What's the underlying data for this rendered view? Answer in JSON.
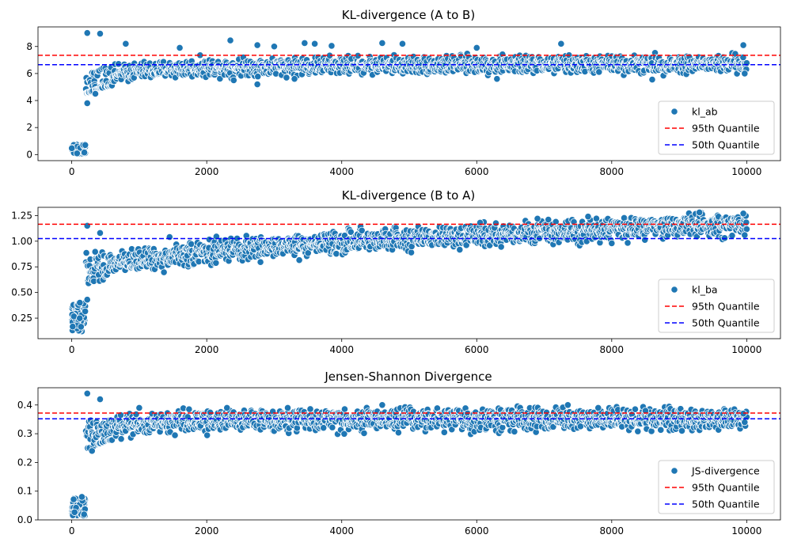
{
  "chart_data": [
    {
      "type": "scatter",
      "title": "KL-divergence (A to B)",
      "xlabel": "",
      "ylabel": "",
      "xlim": [
        -500,
        10500
      ],
      "ylim": [
        -0.45,
        9.45
      ],
      "xticks": [
        0,
        2000,
        4000,
        6000,
        8000,
        10000
      ],
      "yticks": [
        0,
        2,
        4,
        6,
        8
      ],
      "series_name": "kl_ab",
      "trend": {
        "warmup_end": 200,
        "warmup_range": [
          0.05,
          0.75
        ],
        "jump_x": 210,
        "points": [
          [
            210,
            5.3
          ],
          [
            500,
            5.8
          ],
          [
            1000,
            6.2
          ],
          [
            2000,
            6.45
          ],
          [
            4000,
            6.6
          ],
          [
            6000,
            6.65
          ],
          [
            10000,
            6.7
          ]
        ],
        "spread": 0.85,
        "pct_range_start": [
          0.55,
          1.05
        ]
      },
      "outliers": [
        [
          230,
          9.0
        ],
        [
          420,
          8.95
        ],
        [
          230,
          3.8
        ],
        [
          350,
          4.5
        ],
        [
          800,
          8.2
        ],
        [
          1600,
          7.9
        ],
        [
          2350,
          8.45
        ],
        [
          2400,
          5.5
        ],
        [
          2750,
          5.2
        ],
        [
          2750,
          8.1
        ],
        [
          3000,
          8.0
        ],
        [
          3300,
          5.6
        ],
        [
          3450,
          8.25
        ],
        [
          3600,
          8.2
        ],
        [
          3850,
          8.05
        ],
        [
          4600,
          8.25
        ],
        [
          4900,
          8.2
        ],
        [
          6000,
          7.9
        ],
        [
          7250,
          8.2
        ],
        [
          9950,
          8.1
        ],
        [
          9970,
          6.0
        ],
        [
          6300,
          5.6
        ],
        [
          8600,
          5.55
        ]
      ],
      "hlines": [
        {
          "label": "95th Quantile",
          "value": 7.35,
          "color": "#ff0000"
        },
        {
          "label": "50th Quantile",
          "value": 6.65,
          "color": "#0000ff"
        }
      ],
      "legend_position": "lower-right"
    },
    {
      "type": "scatter",
      "title": "KL-divergence (B to A)",
      "xlabel": "",
      "ylabel": "",
      "xlim": [
        -500,
        10500
      ],
      "ylim": [
        0.05,
        1.33
      ],
      "xticks": [
        0,
        2000,
        4000,
        6000,
        8000,
        10000
      ],
      "yticks": [
        0.25,
        0.5,
        0.75,
        1.0,
        1.25
      ],
      "series_name": "kl_ba",
      "trend": {
        "warmup_end": 200,
        "warmup_range": [
          0.12,
          0.4
        ],
        "jump_x": 210,
        "points": [
          [
            210,
            0.68
          ],
          [
            500,
            0.76
          ],
          [
            1000,
            0.82
          ],
          [
            2000,
            0.89
          ],
          [
            3000,
            0.95
          ],
          [
            4000,
            0.99
          ],
          [
            5000,
            1.03
          ],
          [
            6000,
            1.06
          ],
          [
            7000,
            1.09
          ],
          [
            8000,
            1.12
          ],
          [
            9000,
            1.15
          ],
          [
            10000,
            1.17
          ]
        ],
        "spread": 0.14,
        "pct_range_start": [
          0.6,
          0.9
        ]
      },
      "outliers": [
        [
          230,
          1.15
        ],
        [
          420,
          1.08
        ],
        [
          1450,
          1.04
        ],
        [
          6050,
          1.18
        ],
        [
          6900,
          1.22
        ],
        [
          7650,
          1.24
        ],
        [
          8000,
          0.98
        ],
        [
          9300,
          1.28
        ],
        [
          9950,
          1.27
        ],
        [
          9970,
          1.06
        ],
        [
          230,
          0.43
        ],
        [
          120,
          0.4
        ]
      ],
      "hlines": [
        {
          "label": "95th Quantile",
          "value": 1.165,
          "color": "#ff0000"
        },
        {
          "label": "50th Quantile",
          "value": 1.025,
          "color": "#0000ff"
        }
      ],
      "legend_position": "lower-right"
    },
    {
      "type": "scatter",
      "title": "Jensen-Shannon Divergence",
      "xlabel": "",
      "ylabel": "",
      "xlim": [
        -500,
        10500
      ],
      "ylim": [
        0.0,
        0.46
      ],
      "xticks": [
        0,
        2000,
        4000,
        6000,
        8000,
        10000
      ],
      "yticks": [
        0.0,
        0.1,
        0.2,
        0.3,
        0.4
      ],
      "series_name": "JS-divergence",
      "trend": {
        "warmup_end": 200,
        "warmup_range": [
          0.015,
          0.075
        ],
        "jump_x": 210,
        "points": [
          [
            210,
            0.29
          ],
          [
            500,
            0.32
          ],
          [
            1000,
            0.335
          ],
          [
            2000,
            0.345
          ],
          [
            4000,
            0.35
          ],
          [
            10000,
            0.352
          ]
        ],
        "spread": 0.05,
        "pct_range_start": [
          0.24,
          0.36
        ]
      },
      "outliers": [
        [
          230,
          0.44
        ],
        [
          420,
          0.42
        ],
        [
          1000,
          0.39
        ],
        [
          2300,
          0.39
        ],
        [
          3200,
          0.39
        ],
        [
          4600,
          0.4
        ],
        [
          7350,
          0.4
        ],
        [
          7800,
          0.39
        ],
        [
          8500,
          0.38
        ],
        [
          9950,
          0.37
        ],
        [
          9970,
          0.34
        ],
        [
          300,
          0.24
        ],
        [
          150,
          0.08
        ]
      ],
      "hlines": [
        {
          "label": "95th Quantile",
          "value": 0.372,
          "color": "#ff0000"
        },
        {
          "label": "50th Quantile",
          "value": 0.352,
          "color": "#0000ff"
        }
      ],
      "legend_position": "lower-right"
    }
  ],
  "colors": {
    "point_fill": "#1f77b4",
    "point_edge": "#ffffff"
  }
}
